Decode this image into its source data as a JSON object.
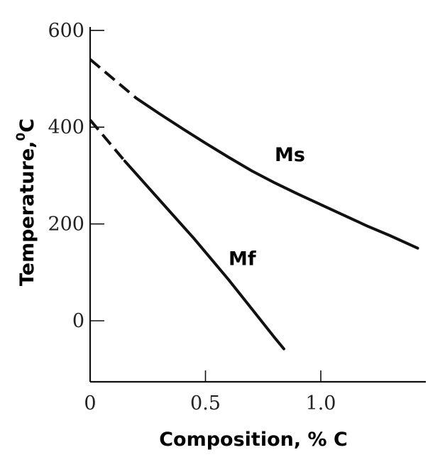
{
  "chart_data": {
    "type": "line",
    "xlabel": "Composition, % C",
    "ylabel": "Temperature,",
    "ylabel_sup": "0",
    "ylabel_unit": "C",
    "xlim": [
      0,
      1.45
    ],
    "ylim": [
      -130,
      610
    ],
    "xticks": [
      0,
      0.5,
      1.0
    ],
    "xtick_labels": [
      "0",
      "0.5",
      "1.0"
    ],
    "yticks": [
      0,
      200,
      400,
      600
    ],
    "ytick_labels": [
      "0",
      "200",
      "400",
      "600"
    ],
    "grid": false,
    "legend": "none",
    "series": [
      {
        "name": "Ms",
        "solid_x": [
          0.2,
          0.3,
          0.4,
          0.5,
          0.6,
          0.7,
          0.8,
          0.9,
          1.0,
          1.1,
          1.2,
          1.3,
          1.42
        ],
        "solid_y": [
          460,
          428,
          397,
          367,
          338,
          310,
          285,
          262,
          240,
          218,
          196,
          176,
          150
        ],
        "dashed_x": [
          0,
          0.2
        ],
        "dashed_y": [
          540,
          460
        ]
      },
      {
        "name": "Mf",
        "solid_x": [
          0.15,
          0.3,
          0.45,
          0.6,
          0.7,
          0.8,
          0.84
        ],
        "solid_y": [
          330,
          250,
          170,
          85,
          25,
          -35,
          -58
        ],
        "dashed_x": [
          0,
          0.15
        ],
        "dashed_y": [
          415,
          330
        ]
      }
    ],
    "annotations": [
      {
        "text": "Ms",
        "x": 0.8,
        "y": 330
      },
      {
        "text": "Mf",
        "x": 0.6,
        "y": 115
      }
    ]
  }
}
